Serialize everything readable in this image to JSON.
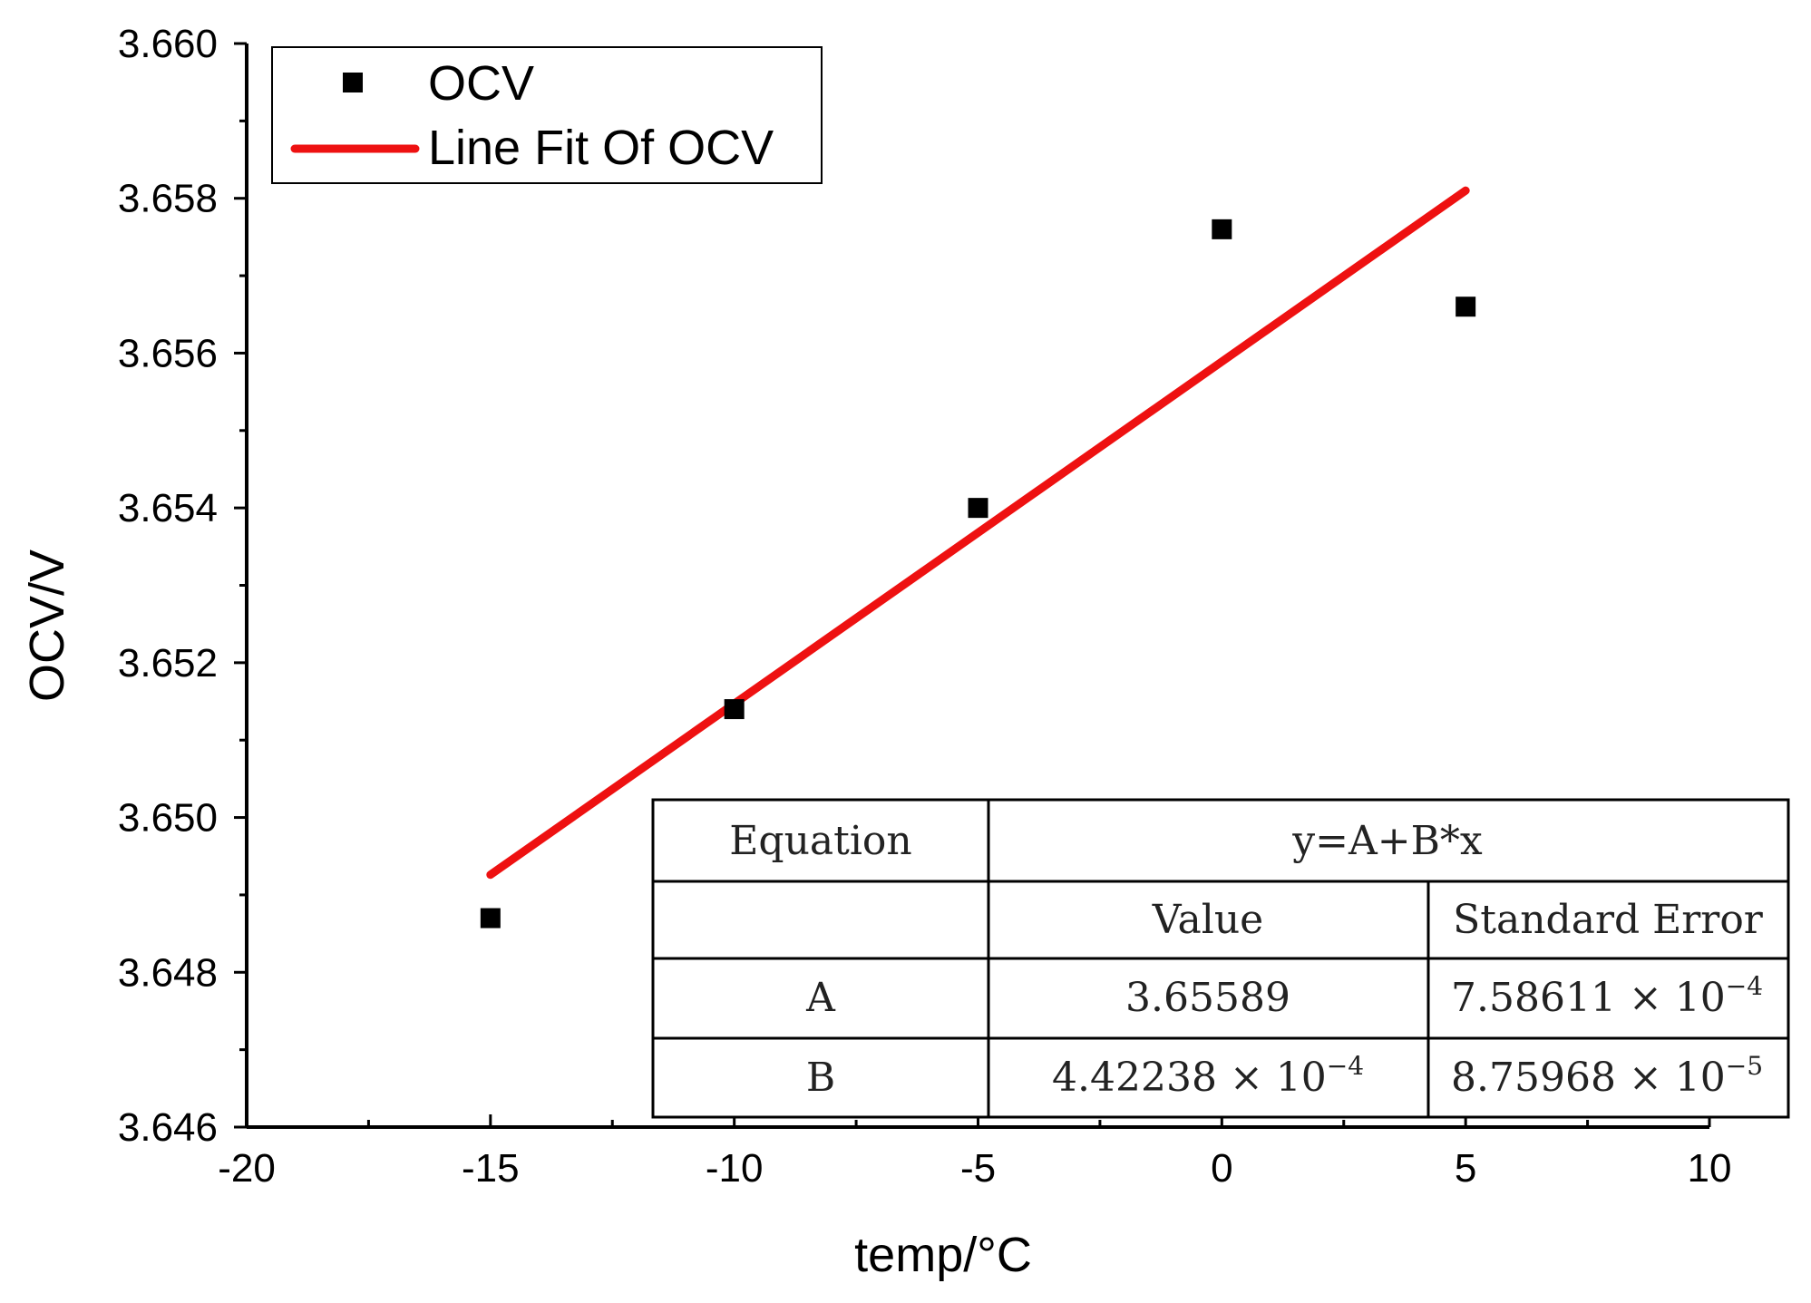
{
  "chart_data": {
    "type": "scatter",
    "xlabel": "temp/°C",
    "ylabel": "OCV/V",
    "xlim": [
      -20,
      10
    ],
    "ylim": [
      3.646,
      3.66
    ],
    "x_ticks": [
      "-20",
      "-15",
      "-10",
      "-5",
      "0",
      "5",
      "10"
    ],
    "x_tick_values": [
      -20,
      -15,
      -10,
      -5,
      0,
      5,
      10
    ],
    "y_ticks": [
      "3.646",
      "3.648",
      "3.650",
      "3.652",
      "3.654",
      "3.656",
      "3.658",
      "3.660"
    ],
    "y_tick_values": [
      3.646,
      3.648,
      3.65,
      3.652,
      3.654,
      3.656,
      3.658,
      3.66
    ],
    "grid": false,
    "series": [
      {
        "name": "OCV",
        "type": "scatter",
        "marker": "square",
        "color": "#000000",
        "x": [
          -15,
          -10,
          -5,
          0,
          5
        ],
        "y": [
          3.6487,
          3.6514,
          3.654,
          3.6576,
          3.6566
        ]
      },
      {
        "name": "Line Fit Of OCV",
        "type": "line",
        "color": "#ee1111",
        "x": [
          -15,
          5
        ],
        "y": [
          3.64926,
          3.6581
        ]
      }
    ],
    "legend": {
      "position": "top-left",
      "entries": [
        "OCV",
        "Line Fit Of OCV"
      ]
    },
    "fit_table": {
      "equation_label": "Equation",
      "equation": "y=A+B*x",
      "col_value": "Value",
      "col_error": "Standard Error",
      "rows": [
        {
          "param": "A",
          "value": "3.65589",
          "value_exp": "",
          "error": "7.58611 × 10",
          "error_exp": "−4"
        },
        {
          "param": "B",
          "value": "4.42238 × 10",
          "value_exp": "−4",
          "error": "8.75968 × 10",
          "error_exp": "−5"
        }
      ]
    }
  }
}
